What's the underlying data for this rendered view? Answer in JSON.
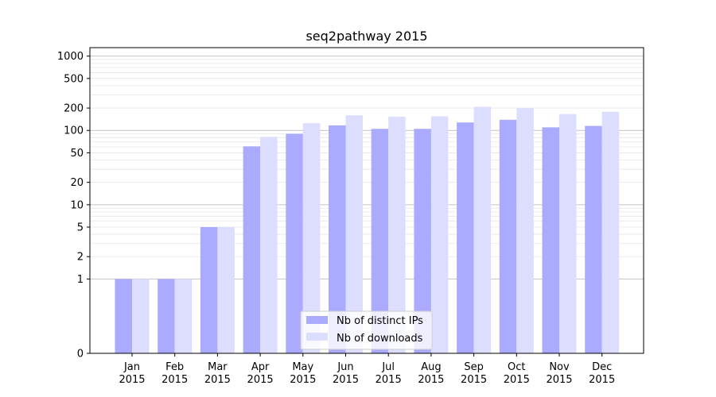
{
  "chart_data": {
    "type": "bar",
    "title": "seq2pathway 2015",
    "xlabel": "",
    "ylabel": "",
    "yscale": "symlog",
    "ylim": [
      0,
      1300
    ],
    "yticks": [
      0,
      1,
      2,
      5,
      10,
      20,
      50,
      100,
      200,
      500,
      1000
    ],
    "grid": true,
    "legend_position": "bottom-center",
    "categories": [
      {
        "month": "Jan",
        "year": "2015"
      },
      {
        "month": "Feb",
        "year": "2015"
      },
      {
        "month": "Mar",
        "year": "2015"
      },
      {
        "month": "Apr",
        "year": "2015"
      },
      {
        "month": "May",
        "year": "2015"
      },
      {
        "month": "Jun",
        "year": "2015"
      },
      {
        "month": "Jul",
        "year": "2015"
      },
      {
        "month": "Aug",
        "year": "2015"
      },
      {
        "month": "Sep",
        "year": "2015"
      },
      {
        "month": "Oct",
        "year": "2015"
      },
      {
        "month": "Nov",
        "year": "2015"
      },
      {
        "month": "Dec",
        "year": "2015"
      }
    ],
    "series": [
      {
        "name": "Nb of distinct IPs",
        "color": "#aaaaff",
        "values": [
          1,
          1,
          5,
          61,
          90,
          117,
          105,
          105,
          128,
          139,
          110,
          115
        ]
      },
      {
        "name": "Nb of downloads",
        "color": "#ddddff",
        "values": [
          1,
          1,
          5,
          82,
          125,
          160,
          153,
          155,
          208,
          198,
          166,
          178
        ]
      }
    ]
  }
}
